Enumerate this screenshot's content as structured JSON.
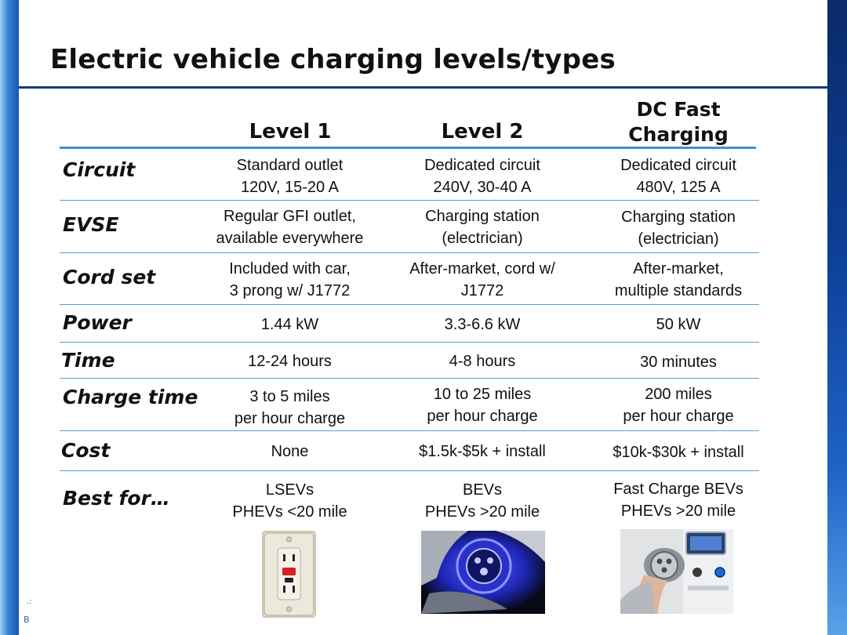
{
  "title": "Electric vehicle charging levels/types",
  "footer_mark": "B",
  "footer_dots": ".:",
  "columns": {
    "level1": "Level 1",
    "level2": "Level 2",
    "dc_line1": "DC Fast",
    "dc_line2": "Charging"
  },
  "rows": [
    {
      "label": "Circuit",
      "level1": "Standard outlet\n120V, 15-20 A",
      "level2": "Dedicated circuit\n240V, 30-40 A",
      "dc": "Dedicated circuit\n480V, 125 A"
    },
    {
      "label": "EVSE",
      "level1": "Regular GFI outlet,\navailable everywhere",
      "level2": "Charging station\n(electrician)",
      "dc": "Charging station\n(electrician)"
    },
    {
      "label": "Cord set",
      "level1": "Included with car,\n3 prong w/ J1772",
      "level2": "After-market, cord w/\nJ1772",
      "dc": "After-market,\nmultiple standards"
    },
    {
      "label": "Power",
      "level1": "1.44 kW",
      "level2": "3.3-6.6 kW",
      "dc": "50 kW"
    },
    {
      "label": "Time",
      "level1": "12-24 hours",
      "level2": "4-8 hours",
      "dc": "30 minutes"
    },
    {
      "label": "Charge time",
      "level1": "3 to 5 miles\nper hour charge",
      "level2": "10 to 25 miles\nper hour charge",
      "dc": "200 miles\nper hour charge"
    },
    {
      "label": "Cost",
      "level1": "None",
      "level2": "$1.5k-$5k + install",
      "dc": "$10k-$30k + install"
    },
    {
      "label": "Best for…",
      "level1": "LSEVs\nPHEVs <20 mile",
      "level2": "BEVs\nPHEVs >20 mile",
      "dc": "Fast Charge BEVs\nPHEVs >20 mile"
    }
  ],
  "icons": {
    "outlet": "gfi-outlet-photo",
    "port": "charging-port-photo",
    "dc": "dc-fast-charger-photo"
  }
}
